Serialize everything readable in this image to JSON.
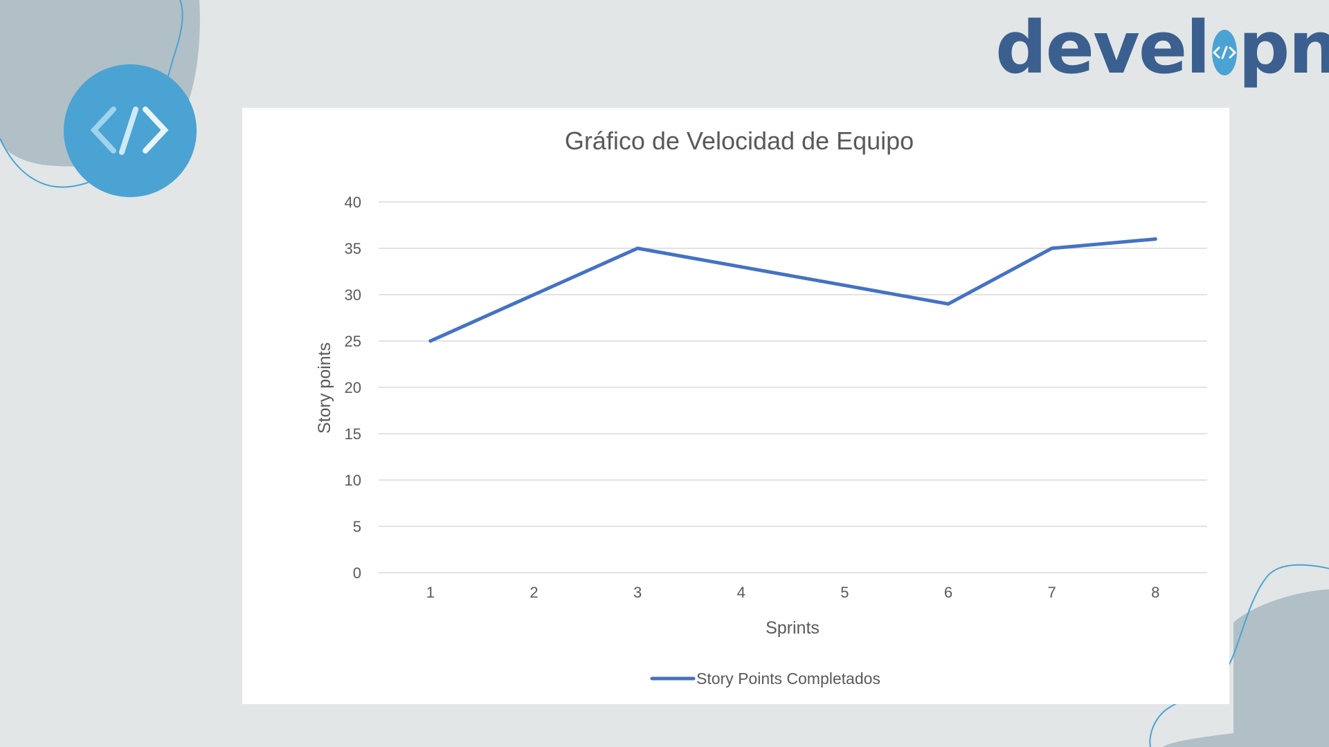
{
  "brand": {
    "logo_prefix": "devel",
    "logo_suffix": "pn",
    "code_symbol": "</>"
  },
  "colors": {
    "background": "#e2e6e6",
    "blob": "#b1bfc7",
    "accent": "#4aa3d2",
    "logo_text": "#3b5f8f",
    "series_line": "#4472c4",
    "gridline": "#d9d9d9",
    "text": "#595959"
  },
  "chart_data": {
    "type": "line",
    "title": "Gráfico de Velocidad de Equipo",
    "xlabel": "Sprints",
    "ylabel": "Story points",
    "categories": [
      "1",
      "2",
      "3",
      "4",
      "5",
      "6",
      "7",
      "8"
    ],
    "y_ticks": [
      "0",
      "5",
      "10",
      "15",
      "20",
      "25",
      "30",
      "35",
      "40"
    ],
    "ylim": [
      0,
      40
    ],
    "grid": true,
    "legend_position": "bottom",
    "series": [
      {
        "name": "Story Points Completados",
        "values": [
          25,
          30,
          35,
          33,
          31,
          29,
          35,
          36
        ],
        "color": "#4472c4"
      }
    ]
  }
}
